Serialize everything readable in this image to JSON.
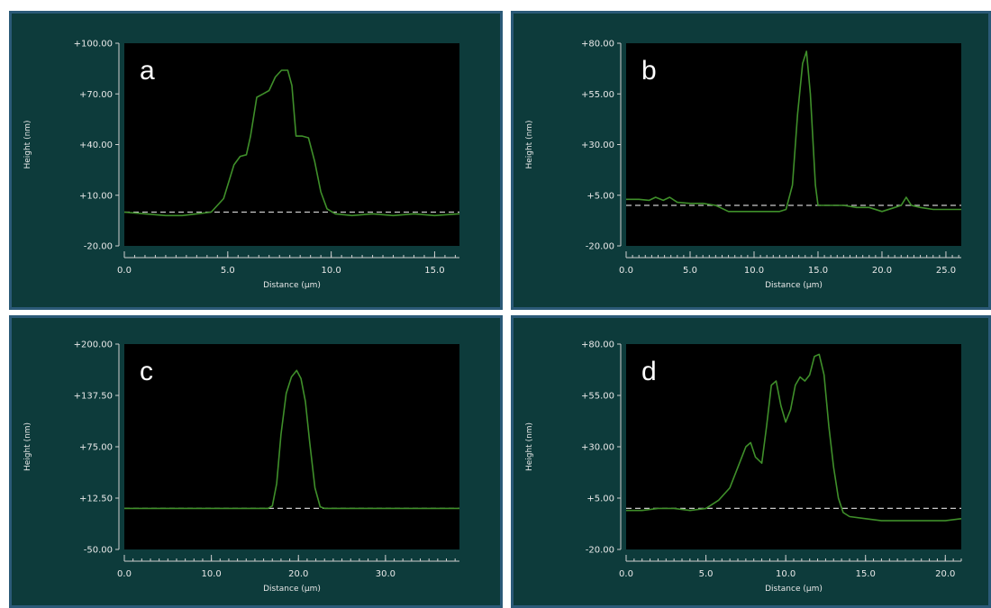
{
  "colors": {
    "panel_bg": "#0d3b3b",
    "plot_bg": "#000000",
    "trace": "#3f8f2a",
    "baseline": "#c9c9c9",
    "border": "#2b5a78"
  },
  "chart_data": [
    {
      "panel": "a",
      "type": "line",
      "xlabel": "Distance (µm)",
      "ylabel": "Height (nm)",
      "xlim": [
        0,
        16.2
      ],
      "ylim": [
        -20,
        100
      ],
      "xticks": [
        0,
        5,
        10,
        15
      ],
      "xtick_labels": [
        "0.0",
        "5.0",
        "10.0",
        "15.0"
      ],
      "yticks": [
        -20,
        10,
        40,
        70,
        100
      ],
      "ytick_labels": [
        "-20.00",
        "+10.00",
        "+40.00",
        "+70.00",
        "+100.00"
      ],
      "baseline": 0,
      "series": [
        {
          "x": [
            0,
            1,
            2,
            2.8,
            3.5,
            4.2,
            4.8,
            5.1,
            5.3,
            5.6,
            5.9,
            6.1,
            6.4,
            6.7,
            7,
            7.3,
            7.6,
            7.9,
            8.1,
            8.3,
            8.6,
            8.9,
            9.2,
            9.5,
            9.8,
            10.2,
            11,
            12,
            13,
            14,
            15,
            16.2
          ],
          "y": [
            0,
            -1,
            -2,
            -2,
            -1,
            0,
            8,
            20,
            28,
            33,
            34,
            45,
            68,
            70,
            72,
            80,
            84,
            84,
            75,
            45,
            45,
            44,
            30,
            12,
            2,
            -1,
            -2,
            -1,
            -2,
            -1,
            -2,
            -1
          ]
        }
      ]
    },
    {
      "panel": "b",
      "type": "line",
      "xlabel": "Distance (µm)",
      "ylabel": "Height (nm)",
      "xlim": [
        0,
        26.2
      ],
      "ylim": [
        -20,
        80
      ],
      "xticks": [
        0,
        5,
        10,
        15,
        20,
        25
      ],
      "xtick_labels": [
        "0.0",
        "5.0",
        "10.0",
        "15.0",
        "20.0",
        "25.0"
      ],
      "yticks": [
        -20,
        5,
        30,
        55,
        80
      ],
      "ytick_labels": [
        "-20.00",
        "+5.00",
        "+30.00",
        "+55.00",
        "+80.00"
      ],
      "baseline": 0,
      "series": [
        {
          "x": [
            0,
            1,
            1.8,
            2.3,
            2.9,
            3.4,
            4,
            5,
            6,
            7,
            8,
            9,
            10,
            11,
            12,
            12.5,
            13,
            13.4,
            13.8,
            14.1,
            14.4,
            14.8,
            15,
            16,
            17,
            18,
            19,
            20,
            21,
            21.5,
            21.9,
            22.3,
            23,
            24,
            25,
            26.2
          ],
          "y": [
            3,
            3,
            2.5,
            4,
            2.5,
            4,
            1.5,
            1,
            1,
            0,
            -3,
            -3,
            -3,
            -3,
            -3,
            -2,
            10,
            45,
            70,
            76,
            55,
            10,
            0,
            0,
            0,
            -1,
            -1,
            -3,
            -1,
            0,
            4,
            0,
            -1,
            -2,
            -2,
            -2
          ]
        }
      ]
    },
    {
      "panel": "c",
      "type": "line",
      "xlabel": "Distance (µm)",
      "ylabel": "Height (nm)",
      "xlim": [
        0,
        38.5
      ],
      "ylim": [
        -50,
        200
      ],
      "xticks": [
        0,
        10,
        20,
        30
      ],
      "xtick_labels": [
        "0.0",
        "10.0",
        "20.0",
        "30.0"
      ],
      "yticks": [
        -50,
        12.5,
        75,
        137.5,
        200
      ],
      "ytick_labels": [
        "-50.00",
        "+12.50",
        "+75.00",
        "+137.50",
        "+200.00"
      ],
      "baseline": 0,
      "series": [
        {
          "x": [
            0,
            10,
            16.5,
            17,
            17.5,
            18,
            18.6,
            19.2,
            19.8,
            20.3,
            20.8,
            21.3,
            21.9,
            22.5,
            23,
            30,
            38.5
          ],
          "y": [
            0,
            0,
            0,
            3,
            30,
            90,
            140,
            160,
            168,
            158,
            130,
            80,
            25,
            2,
            0,
            0,
            0
          ]
        }
      ]
    },
    {
      "panel": "d",
      "type": "line",
      "xlabel": "Distance (µm)",
      "ylabel": "Height (nm)",
      "xlim": [
        0,
        21
      ],
      "ylim": [
        -20,
        80
      ],
      "xticks": [
        0,
        5,
        10,
        15,
        20
      ],
      "xtick_labels": [
        "0.0",
        "5.0",
        "10.0",
        "15.0",
        "20.0"
      ],
      "yticks": [
        -20,
        5,
        30,
        55,
        80
      ],
      "ytick_labels": [
        "-20.00",
        "+5.00",
        "+30.00",
        "+55.00",
        "+80.00"
      ],
      "baseline": 0,
      "series": [
        {
          "x": [
            0,
            1,
            2,
            3,
            4,
            5,
            5.8,
            6.5,
            7,
            7.5,
            7.8,
            8.1,
            8.5,
            8.8,
            9.1,
            9.4,
            9.7,
            10,
            10.3,
            10.6,
            10.9,
            11.2,
            11.5,
            11.8,
            12.1,
            12.4,
            12.7,
            13,
            13.3,
            13.6,
            14,
            15,
            16,
            17,
            18,
            19,
            20,
            21
          ],
          "y": [
            -1,
            -1,
            0,
            0,
            -1,
            0,
            4,
            10,
            20,
            30,
            32,
            25,
            22,
            40,
            60,
            62,
            50,
            42,
            48,
            60,
            64,
            62,
            65,
            74,
            75,
            65,
            40,
            20,
            5,
            -2,
            -4,
            -5,
            -6,
            -6,
            -6,
            -6,
            -6,
            -5
          ]
        }
      ]
    }
  ]
}
